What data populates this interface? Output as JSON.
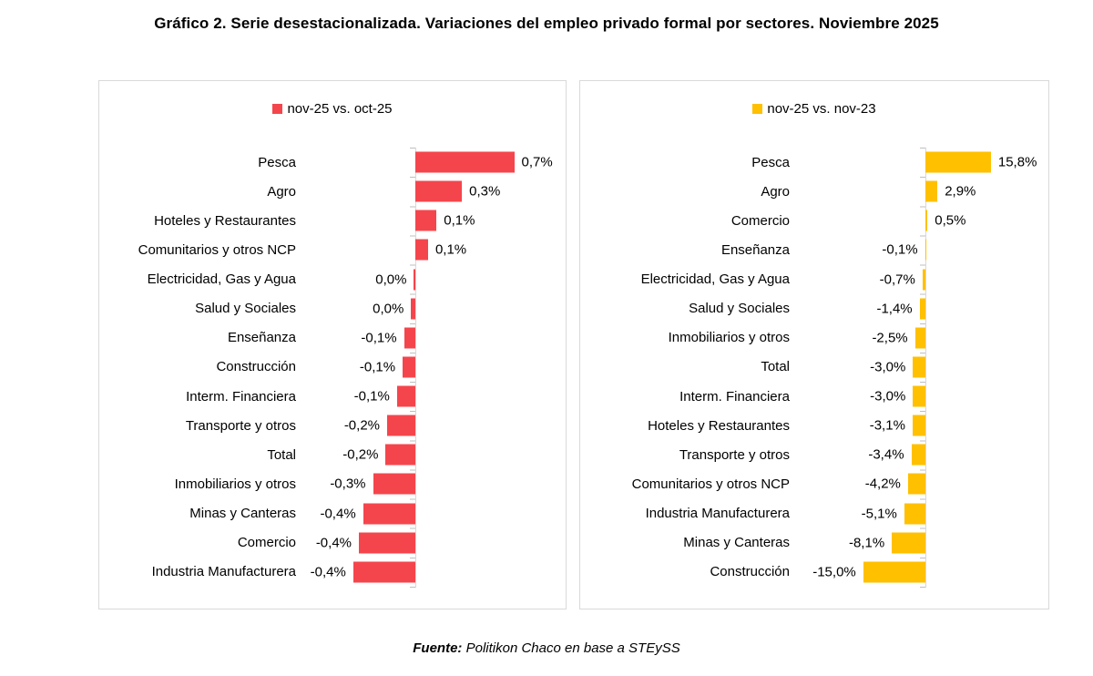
{
  "title": "Gráfico 2. Serie desestacionalizada. Variaciones del empleo privado formal por sectores. Noviembre 2025",
  "source": {
    "prefix": "Fuente:",
    "text": " Politikon Chaco en base a STEySS"
  },
  "chart_data": [
    {
      "type": "bar",
      "orientation": "horizontal",
      "legend": "nov-25 vs. oct-25",
      "bar_color": "#F5454C",
      "value_suffix": "%",
      "decimal_separator": ",",
      "gridlines": false,
      "legend_position": "top",
      "xlim": [
        -0.8,
        1.05
      ],
      "categories": [
        "Pesca",
        "Agro",
        "Hoteles y Restaurantes",
        "Comunitarios y otros NCP",
        "Electricidad, Gas y Agua",
        "Salud y Sociales",
        "Enseñanza",
        "Construcción",
        "Interm. Financiera",
        "Transporte y otros",
        "Total",
        "Inmobiliarios y otros",
        "Minas y Canteras",
        "Comercio",
        "Industria Manufacturera"
      ],
      "labels": [
        "0,7%",
        "0,3%",
        "0,1%",
        "0,1%",
        "0,0%",
        "0,0%",
        "-0,1%",
        "-0,1%",
        "-0,1%",
        "-0,2%",
        "-0,2%",
        "-0,3%",
        "-0,4%",
        "-0,4%",
        "-0,4%"
      ],
      "values": [
        0.7,
        0.3,
        0.1,
        0.1,
        0.0,
        0.0,
        -0.1,
        -0.1,
        -0.1,
        -0.2,
        -0.2,
        -0.3,
        -0.4,
        -0.4,
        -0.4
      ],
      "values_render": [
        0.7,
        0.33,
        0.15,
        0.09,
        -0.01,
        -0.03,
        -0.08,
        -0.09,
        -0.13,
        -0.2,
        -0.21,
        -0.3,
        -0.37,
        -0.4,
        -0.44
      ]
    },
    {
      "type": "bar",
      "orientation": "horizontal",
      "legend": "nov-25 vs. nov-23",
      "bar_color": "#FFC000",
      "value_suffix": "%",
      "decimal_separator": ",",
      "gridlines": false,
      "legend_position": "top",
      "xlim": [
        -16.5,
        17
      ],
      "categories": [
        "Pesca",
        "Agro",
        "Comercio",
        "Enseñanza",
        "Electricidad, Gas y Agua",
        "Salud y Sociales",
        "Inmobiliarios y otros",
        "Total",
        "Interm. Financiera",
        "Hoteles y Restaurantes",
        "Transporte y otros",
        "Comunitarios y otros NCP",
        "Industria Manufacturera",
        "Minas y Canteras",
        "Construcción"
      ],
      "labels": [
        "15,8%",
        "2,9%",
        "0,5%",
        "-0,1%",
        "-0,7%",
        "-1,4%",
        "-2,5%",
        "-3,0%",
        "-3,0%",
        "-3,1%",
        "-3,4%",
        "-4,2%",
        "-5,1%",
        "-8,1%",
        "-15,0%"
      ],
      "values": [
        15.8,
        2.9,
        0.5,
        -0.1,
        -0.7,
        -1.4,
        -2.5,
        -3.0,
        -3.0,
        -3.1,
        -3.4,
        -4.2,
        -5.1,
        -8.1,
        -15.0
      ]
    }
  ]
}
